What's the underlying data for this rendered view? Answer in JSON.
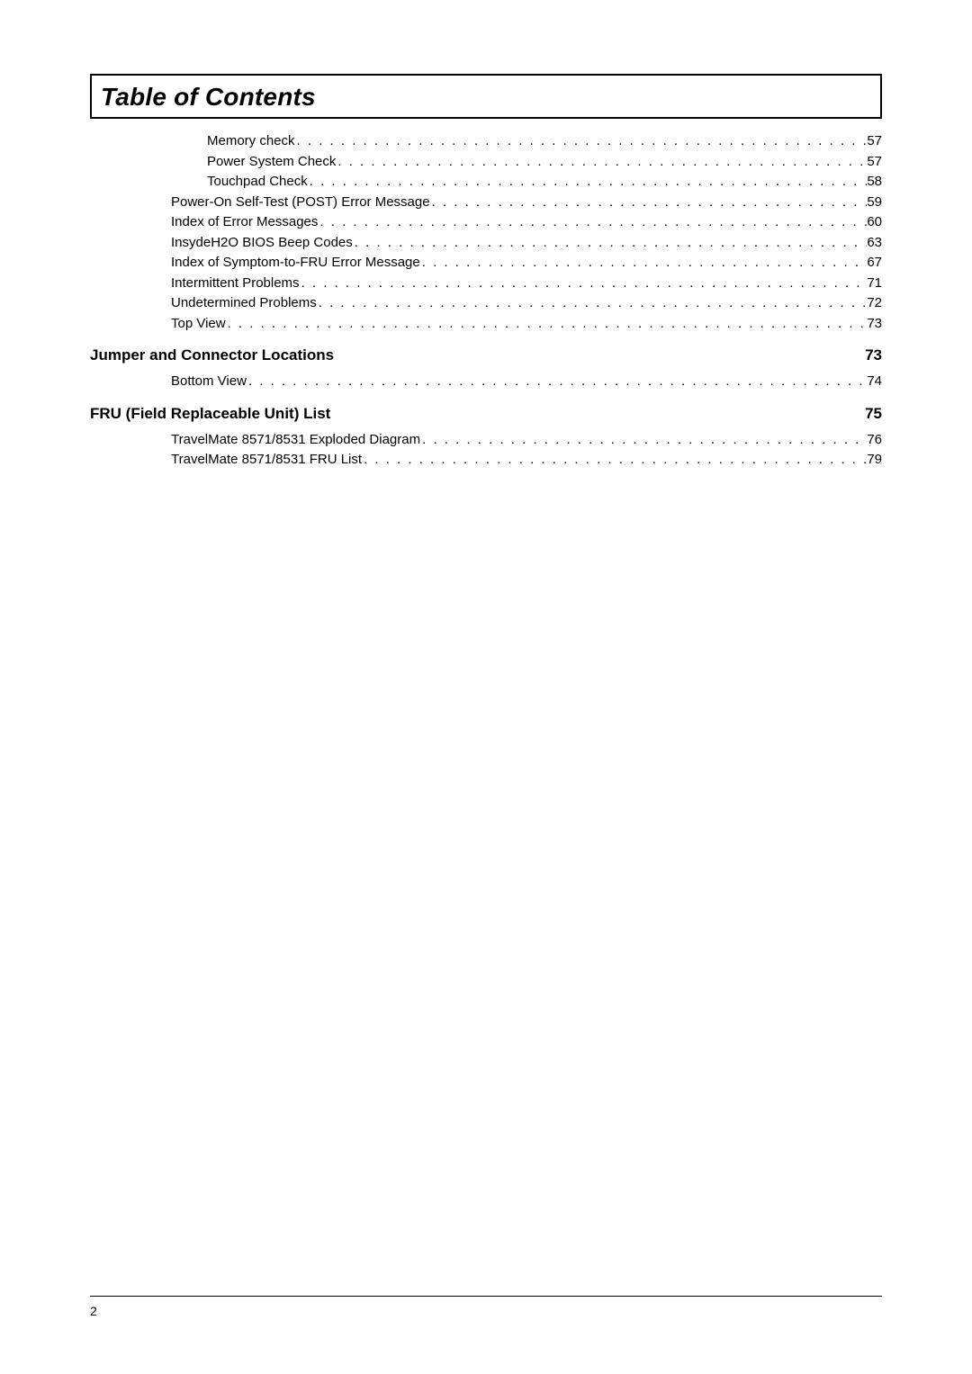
{
  "title": "Table of Contents",
  "page_number": "2",
  "colors": {
    "text": "#000000",
    "background": "#ffffff",
    "border": "#000000"
  },
  "typography": {
    "body_fontsize": 15,
    "section_fontsize": 17,
    "title_fontsize": 28
  },
  "group_a_indent2": [
    {
      "label": "Memory check",
      "page": "57"
    },
    {
      "label": "Power System Check",
      "page": "57"
    },
    {
      "label": "Touchpad Check",
      "page": "58"
    }
  ],
  "group_a_indent1": [
    {
      "label": "Power-On Self-Test (POST) Error Message",
      "page": "59"
    },
    {
      "label": "Index of Error Messages",
      "page": "60"
    },
    {
      "label": "InsydeH2O BIOS Beep Codes",
      "page": "63"
    },
    {
      "label": "Index of Symptom-to-FRU Error Message",
      "page": "67"
    },
    {
      "label": "Intermittent Problems",
      "page": "71"
    },
    {
      "label": "Undetermined Problems",
      "page": "72"
    },
    {
      "label": "Top View",
      "page": "73"
    }
  ],
  "section_b": {
    "title": "Jumper and Connector Locations",
    "page": "73"
  },
  "group_b_indent1": [
    {
      "label": "Bottom View",
      "page": "74"
    }
  ],
  "section_c": {
    "title": "FRU (Field Replaceable Unit) List",
    "page": "75"
  },
  "group_c_indent1": [
    {
      "label": "TravelMate 8571/8531 Exploded Diagram",
      "page": "76"
    },
    {
      "label": "TravelMate 8571/8531 FRU List",
      "page": "79"
    }
  ]
}
